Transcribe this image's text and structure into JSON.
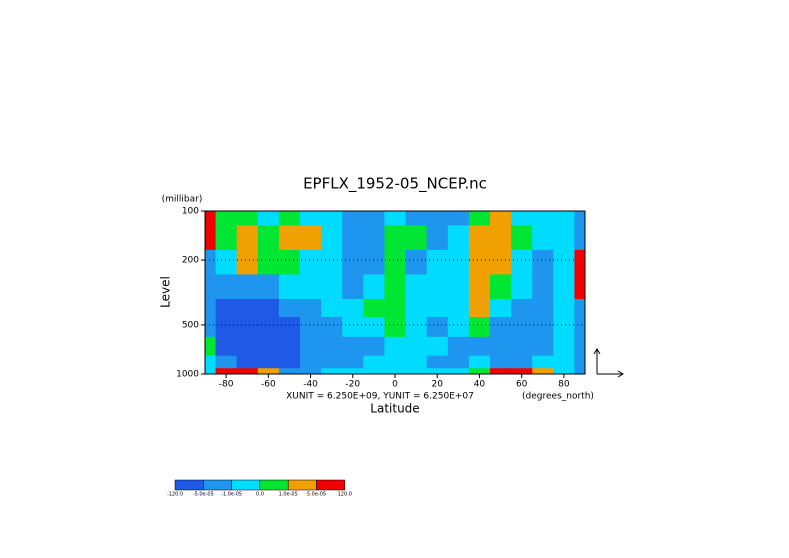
{
  "chart_data": {
    "type": "contour",
    "title": "EPFLX_1952-05_NCEP.nc",
    "x_label": "Latitude",
    "y_label": "Level",
    "y_unit": "(millibar)",
    "x_unit": "(degrees_north)",
    "vector_note": "XUNIT = 6.250E+09, YUNIT = 6.250E+07",
    "x": [
      -90,
      -80,
      -70,
      -60,
      -50,
      -40,
      -30,
      -20,
      -10,
      0,
      10,
      20,
      30,
      40,
      50,
      60,
      70,
      80,
      90
    ],
    "y": [
      100,
      150,
      200,
      300,
      400,
      500,
      700,
      850,
      1000
    ],
    "xlim": [
      -90,
      90
    ],
    "ylim": [
      1000,
      100
    ],
    "y_log": true,
    "xticks": [
      -80,
      -60,
      -40,
      -20,
      0,
      20,
      40,
      60,
      80
    ],
    "yticks": [
      100,
      200,
      500,
      1000
    ],
    "z": [
      [
        8e-05,
        5e-06,
        5e-06,
        -5e-06,
        5e-06,
        -5e-06,
        -5e-06,
        -3e-05,
        -3e-05,
        -5e-06,
        -3e-05,
        -3e-05,
        -3e-05,
        5e-06,
        3e-05,
        -5e-06,
        -5e-06,
        -5e-06,
        -3e-05
      ],
      [
        8e-05,
        5e-06,
        3e-05,
        5e-06,
        3e-05,
        3e-05,
        -5e-06,
        -3e-05,
        -3e-05,
        5e-06,
        5e-06,
        -3e-05,
        -5e-06,
        3e-05,
        3e-05,
        5e-06,
        -5e-06,
        -5e-06,
        -3e-05
      ],
      [
        -3e-05,
        -5e-06,
        3e-05,
        5e-06,
        5e-06,
        -5e-06,
        -5e-06,
        -3e-05,
        -3e-05,
        5e-06,
        -3e-05,
        -5e-06,
        -5e-06,
        3e-05,
        3e-05,
        -5e-06,
        -3e-05,
        -5e-06,
        8e-05
      ],
      [
        -3e-05,
        -3e-05,
        -3e-05,
        -3e-05,
        -5e-06,
        -5e-06,
        -5e-06,
        -3e-05,
        -5e-06,
        5e-06,
        -5e-06,
        -5e-06,
        -5e-06,
        3e-05,
        5e-06,
        -5e-06,
        -3e-05,
        -5e-06,
        8e-05
      ],
      [
        -3e-05,
        -8e-05,
        -8e-05,
        -8e-05,
        -3e-05,
        -3e-05,
        -5e-06,
        -5e-06,
        5e-06,
        5e-06,
        -5e-06,
        -5e-06,
        -5e-06,
        3e-05,
        -5e-06,
        -3e-05,
        -3e-05,
        -5e-06,
        -3e-05
      ],
      [
        -3e-05,
        -8e-05,
        -8e-05,
        -8e-05,
        -8e-05,
        -3e-05,
        -3e-05,
        -5e-06,
        -5e-06,
        5e-06,
        -5e-06,
        -3e-05,
        -5e-06,
        5e-06,
        -3e-05,
        -3e-05,
        -3e-05,
        -5e-06,
        -3e-05
      ],
      [
        5e-06,
        -8e-05,
        -8e-05,
        -8e-05,
        -8e-05,
        -3e-05,
        -3e-05,
        -3e-05,
        -3e-05,
        -5e-06,
        -5e-06,
        -5e-06,
        -3e-05,
        -3e-05,
        -3e-05,
        -3e-05,
        -3e-05,
        -5e-06,
        -3e-05
      ],
      [
        -5e-06,
        -3e-05,
        -8e-05,
        -8e-05,
        -8e-05,
        -3e-05,
        -3e-05,
        -3e-05,
        -5e-06,
        -5e-06,
        -5e-06,
        -3e-05,
        -3e-05,
        -5e-06,
        -3e-05,
        -3e-05,
        -5e-06,
        -5e-06,
        -3e-05
      ],
      [
        -5e-06,
        8e-05,
        8e-05,
        3e-05,
        -3e-05,
        -3e-05,
        -5e-06,
        -5e-06,
        -5e-06,
        -5e-06,
        -5e-06,
        -5e-06,
        -5e-06,
        5e-06,
        8e-05,
        8e-05,
        3e-05,
        -5e-06,
        -3e-05
      ]
    ],
    "colorbar": {
      "levels": [
        {
          "value": -120,
          "label": "-120.0"
        },
        {
          "value": -5e-05,
          "label": "-5.0e-05"
        },
        {
          "value": -1e-05,
          "label": "-1.0e-05"
        },
        {
          "value": 0,
          "label": "0.0"
        },
        {
          "value": 1e-05,
          "label": "1.0e-05"
        },
        {
          "value": 5e-05,
          "label": "5.0e-05"
        },
        {
          "value": 120,
          "label": "120.0"
        }
      ],
      "colors": [
        "#1e5ae6",
        "#1e96f0",
        "#00dcff",
        "#00e632",
        "#f0a000",
        "#f00000"
      ]
    }
  }
}
